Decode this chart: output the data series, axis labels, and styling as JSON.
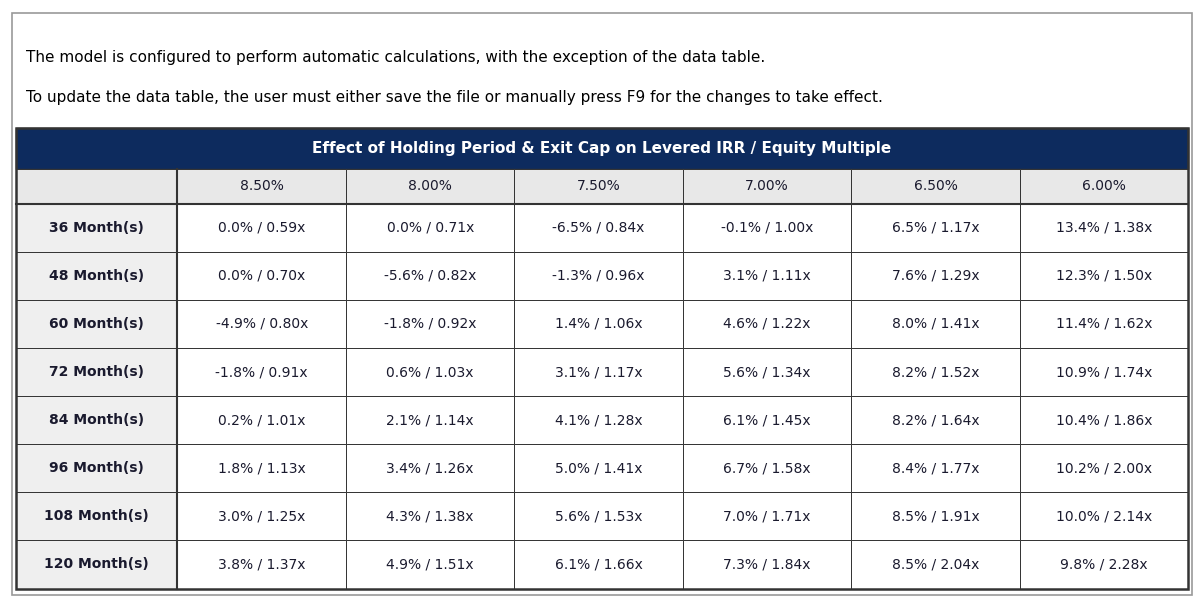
{
  "note_line1": "The model is configured to perform automatic calculations, with the exception of the data table.",
  "note_line2": "To update the data table, the user must either save the file or manually press F9 for the changes to take effect.",
  "table_title": "Effect of Holding Period & Exit Cap on Levered IRR / Equity Multiple",
  "col_headers": [
    "",
    "8.50%",
    "8.00%",
    "7.50%",
    "7.00%",
    "6.50%",
    "6.00%"
  ],
  "row_labels": [
    "36 Month(s)",
    "48 Month(s)",
    "60 Month(s)",
    "72 Month(s)",
    "84 Month(s)",
    "96 Month(s)",
    "108 Month(s)",
    "120 Month(s)"
  ],
  "table_data": [
    [
      "0.0% / 0.59x",
      "0.0% / 0.71x",
      "-6.5% / 0.84x",
      "-0.1% / 1.00x",
      "6.5% / 1.17x",
      "13.4% / 1.38x"
    ],
    [
      "0.0% / 0.70x",
      "-5.6% / 0.82x",
      "-1.3% / 0.96x",
      "3.1% / 1.11x",
      "7.6% / 1.29x",
      "12.3% / 1.50x"
    ],
    [
      "-4.9% / 0.80x",
      "-1.8% / 0.92x",
      "1.4% / 1.06x",
      "4.6% / 1.22x",
      "8.0% / 1.41x",
      "11.4% / 1.62x"
    ],
    [
      "-1.8% / 0.91x",
      "0.6% / 1.03x",
      "3.1% / 1.17x",
      "5.6% / 1.34x",
      "8.2% / 1.52x",
      "10.9% / 1.74x"
    ],
    [
      "0.2% / 1.01x",
      "2.1% / 1.14x",
      "4.1% / 1.28x",
      "6.1% / 1.45x",
      "8.2% / 1.64x",
      "10.4% / 1.86x"
    ],
    [
      "1.8% / 1.13x",
      "3.4% / 1.26x",
      "5.0% / 1.41x",
      "6.7% / 1.58x",
      "8.4% / 1.77x",
      "10.2% / 2.00x"
    ],
    [
      "3.0% / 1.25x",
      "4.3% / 1.38x",
      "5.6% / 1.53x",
      "7.0% / 1.71x",
      "8.5% / 1.91x",
      "10.0% / 2.14x"
    ],
    [
      "3.8% / 1.37x",
      "4.9% / 1.51x",
      "6.1% / 1.66x",
      "7.3% / 1.84x",
      "8.5% / 2.04x",
      "9.8% / 2.28x"
    ]
  ],
  "header_bg_color": "#0D2B5E",
  "header_text_color": "#FFFFFF",
  "col_header_bg_color": "#E8E8E8",
  "col_header_text_color": "#1A1A2E",
  "row_label_bg_color": "#EFEFEF",
  "row_label_text_color": "#1A1A2E",
  "cell_bg_color": "#FFFFFF",
  "cell_text_color": "#1A1A2E",
  "border_color": "#333333",
  "outer_frame_color": "#999999",
  "fig_bg_color": "#FFFFFF",
  "note_text_color": "#000000",
  "note_fontsize": 11.0,
  "title_fontsize": 11.0,
  "col_header_fontsize": 10.0,
  "data_fontsize": 10.0,
  "row_label_fontsize": 10.0
}
